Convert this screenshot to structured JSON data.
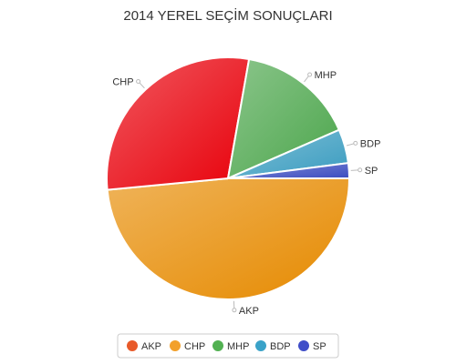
{
  "chart_data": {
    "type": "pie",
    "title": "2014 YEREL SEÇİM SONUÇLARI",
    "categories": [
      "AKP",
      "CHP",
      "MHP",
      "BDP",
      "SP"
    ],
    "values": [
      48.0,
      29.0,
      15.5,
      4.5,
      2.0
    ],
    "colors": [
      "#E68A00",
      "#E8000A",
      "#4CA64C",
      "#3A9CC0",
      "#3B4CC0"
    ],
    "legend_colors": [
      "#E85A2A",
      "#F2A02A",
      "#52B152",
      "#3AA2C8",
      "#3F4EC8"
    ],
    "legend": {
      "items": [
        "AKP",
        "CHP",
        "MHP",
        "BDP",
        "SP"
      ],
      "placement": "bottom"
    },
    "start_angle_deg": 90
  }
}
